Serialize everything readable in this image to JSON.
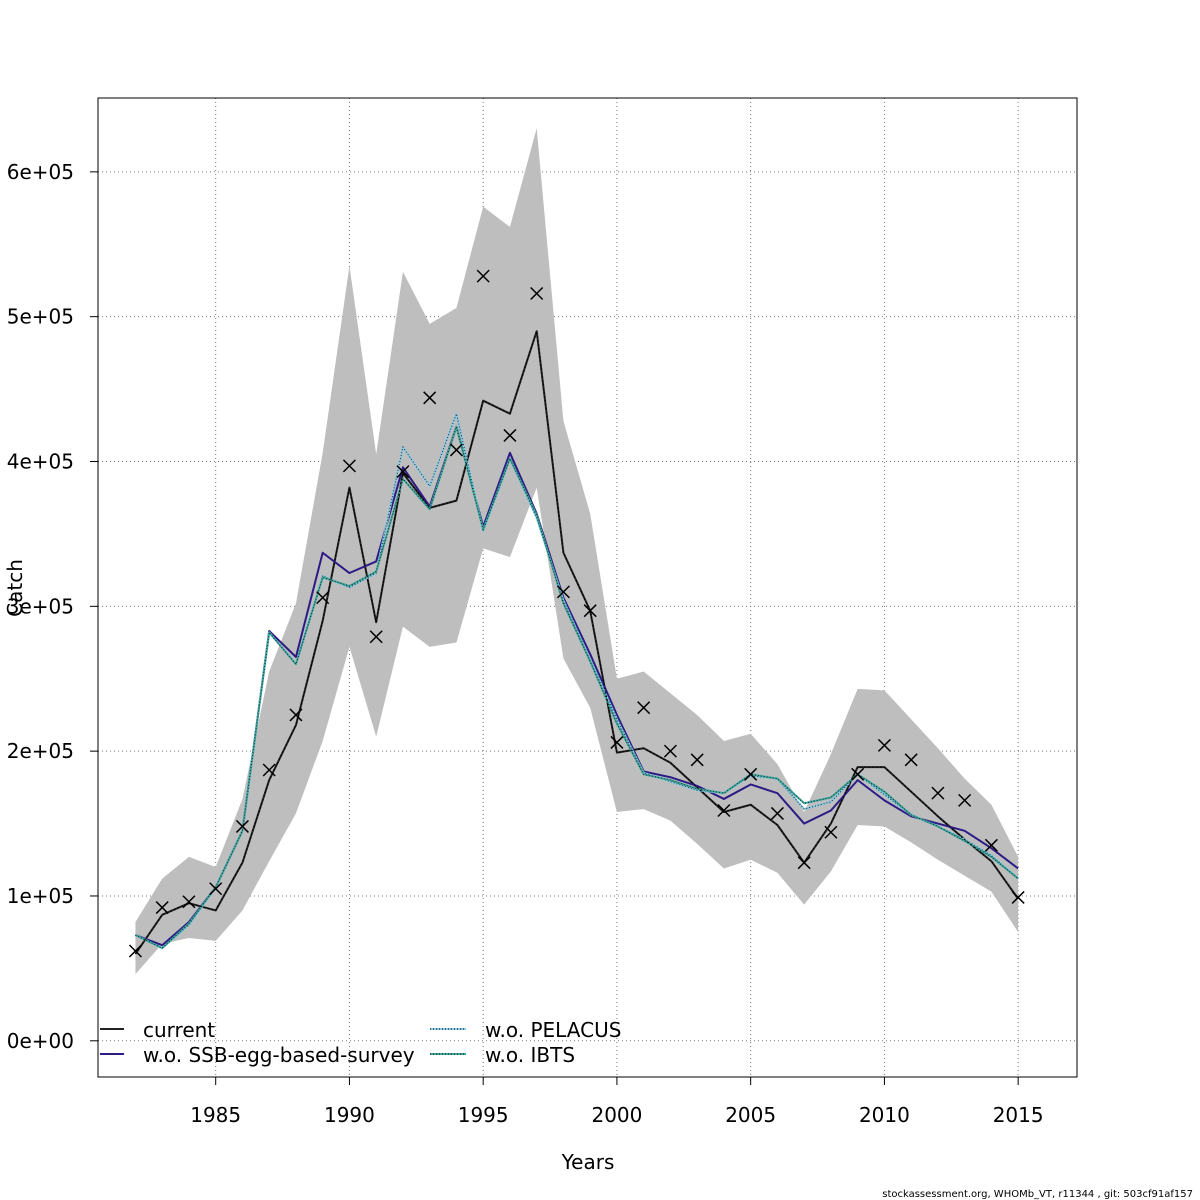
{
  "chart_data": {
    "type": "line",
    "title": "",
    "xlabel": "Years",
    "ylabel": "Catch",
    "xlim": [
      1980.6,
      2017.2
    ],
    "ylim": [
      -25000,
      651000
    ],
    "x_ticks": [
      1985,
      1990,
      1995,
      2000,
      2005,
      2010,
      2015
    ],
    "y_ticks": [
      0,
      100000,
      200000,
      300000,
      400000,
      500000,
      600000
    ],
    "x_tick_labels": [
      "1985",
      "1990",
      "1995",
      "2000",
      "2005",
      "2010",
      "2015"
    ],
    "y_tick_labels": [
      "0e+00",
      "1e+05",
      "2e+05",
      "3e+05",
      "4e+05",
      "5e+05",
      "6e+05"
    ],
    "grid": true,
    "legend_position": "bottom-left",
    "x": [
      1982,
      1983,
      1984,
      1985,
      1986,
      1987,
      1988,
      1989,
      1990,
      1991,
      1992,
      1993,
      1994,
      1995,
      1996,
      1997,
      1998,
      1999,
      2000,
      2001,
      2002,
      2003,
      2004,
      2005,
      2006,
      2007,
      2008,
      2009,
      2010,
      2011,
      2012,
      2013,
      2014,
      2015
    ],
    "confidence_band": {
      "color": "#bebebe",
      "lower": [
        46000,
        67000,
        71000,
        69000,
        90000,
        124000,
        157000,
        207000,
        272000,
        210000,
        286000,
        272000,
        275000,
        340000,
        334000,
        382000,
        264000,
        230000,
        158000,
        160000,
        152000,
        136000,
        119000,
        125000,
        116000,
        94000,
        117000,
        149000,
        148000,
        137000,
        125000,
        114000,
        103000,
        75000
      ],
      "upper": [
        82000,
        112000,
        127000,
        120000,
        167000,
        255000,
        302000,
        406000,
        535000,
        405000,
        531000,
        495000,
        506000,
        576000,
        562000,
        630000,
        428000,
        364000,
        250000,
        255000,
        240000,
        225000,
        207000,
        212000,
        191000,
        158000,
        198000,
        243000,
        242000,
        222000,
        202000,
        181000,
        163000,
        127000
      ]
    },
    "series": [
      {
        "name": "current",
        "color": "#222222",
        "dash": "solid",
        "values": [
          60000,
          87000,
          95000,
          90000,
          123000,
          180000,
          218000,
          290000,
          382000,
          289000,
          392000,
          368000,
          373000,
          442000,
          433000,
          490000,
          337000,
          297000,
          199000,
          202000,
          192000,
          175000,
          158000,
          163000,
          149000,
          123000,
          150000,
          189000,
          189000,
          172000,
          155000,
          139000,
          124000,
          98000
        ]
      },
      {
        "name": "w.o. SSB-egg-based-survey",
        "color": "#2e1a86",
        "dash": "solid",
        "values": [
          73000,
          66000,
          82000,
          106000,
          145000,
          283000,
          265000,
          337000,
          323000,
          331000,
          396000,
          369000,
          424000,
          355000,
          406000,
          364000,
          306000,
          267000,
          225000,
          186000,
          182000,
          176000,
          167000,
          177000,
          171000,
          150000,
          159000,
          180000,
          166000,
          155000,
          150000,
          145000,
          133000,
          119000
        ]
      },
      {
        "name": "w.o. PELACUS",
        "color": "#87cce8",
        "dash": "dotted",
        "values": [
          73000,
          64000,
          80000,
          106000,
          145000,
          282000,
          260000,
          321000,
          313000,
          323000,
          410000,
          383000,
          433000,
          352000,
          402000,
          361000,
          304000,
          263000,
          222000,
          185000,
          179000,
          173000,
          171000,
          183000,
          181000,
          160000,
          165000,
          184000,
          170000,
          156000,
          148000,
          139000,
          128000,
          112000
        ]
      },
      {
        "name": "w.o. IBTS",
        "color": "#3aaaa0",
        "dash": "dotted",
        "values": [
          73000,
          64000,
          81000,
          106000,
          145000,
          282000,
          260000,
          320000,
          314000,
          324000,
          388000,
          367000,
          424000,
          353000,
          402000,
          363000,
          302000,
          262000,
          219000,
          184000,
          180000,
          174000,
          171000,
          184000,
          181000,
          164000,
          168000,
          184000,
          172000,
          156000,
          148000,
          138000,
          127000,
          112000
        ]
      }
    ],
    "observed": {
      "marker": "x",
      "values": [
        62000,
        92000,
        96000,
        105000,
        148000,
        187000,
        225000,
        306000,
        397000,
        279000,
        393000,
        444000,
        408000,
        528000,
        418000,
        516000,
        310000,
        297000,
        206000,
        230000,
        200000,
        194000,
        159000,
        184000,
        157000,
        123000,
        144000,
        184000,
        204000,
        194000,
        171000,
        166000,
        135000,
        99000
      ]
    }
  },
  "legend": {
    "col1": [
      "current",
      "w.o. SSB-egg-based-survey"
    ],
    "col2": [
      "w.o. PELACUS",
      "w.o. IBTS"
    ]
  },
  "footer": "stockassessment.org, WHOMb_VT, r11344 , git: 503cf91af157"
}
